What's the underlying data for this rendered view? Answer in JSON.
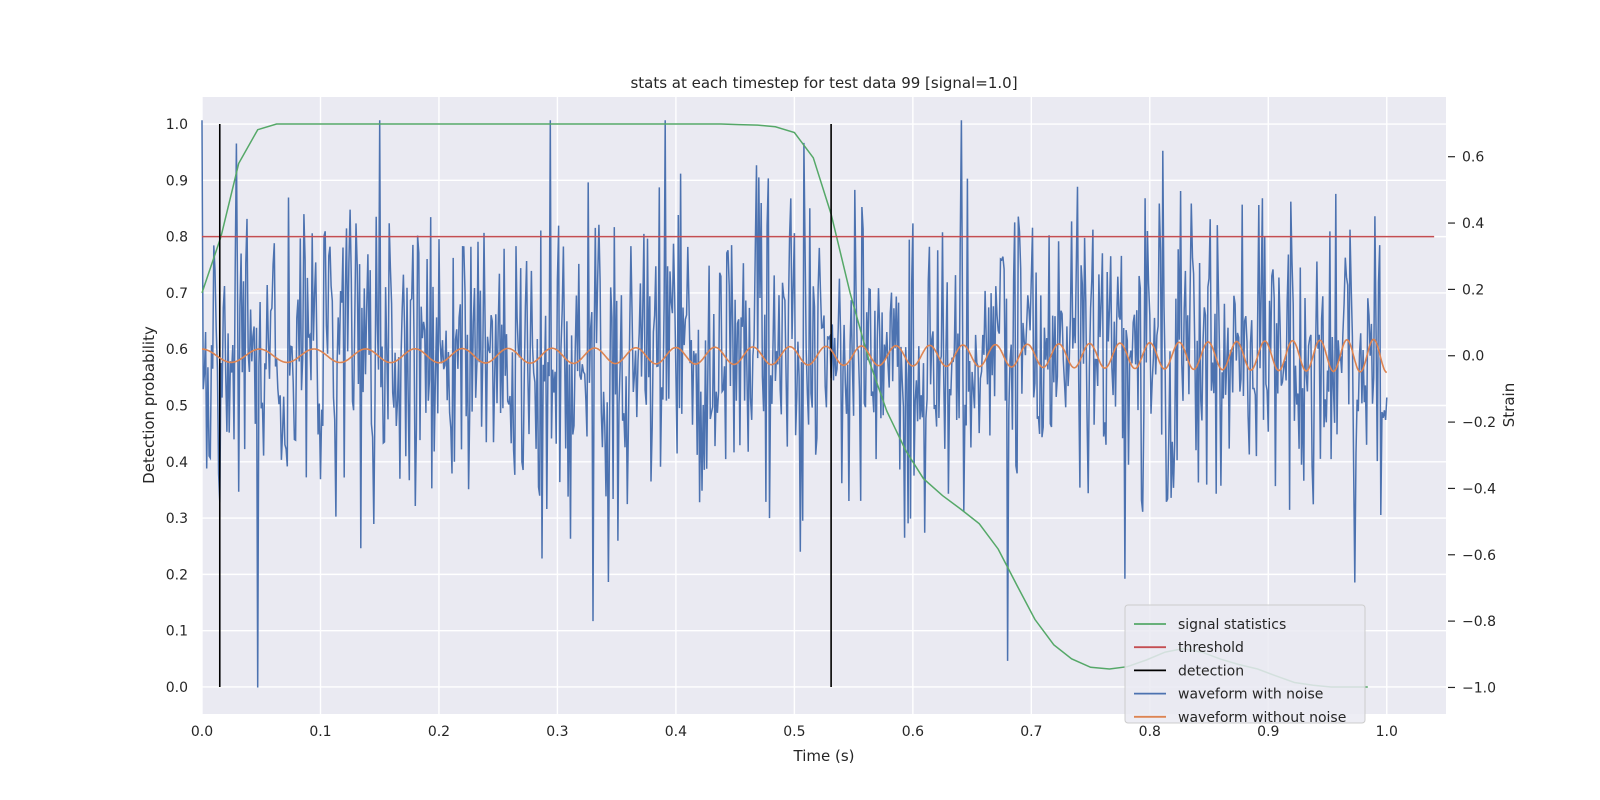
{
  "chart_data": {
    "type": "line",
    "title": "stats at each timestep for test data 99 [signal=1.0]",
    "xlabel": "Time (s)",
    "ylabel_left": "Detection probability",
    "ylabel_right": "Strain",
    "xlim": [
      0.0,
      1.05
    ],
    "ylim_left": [
      -0.048,
      1.048
    ],
    "ylim_right": [
      -1.08,
      0.78
    ],
    "x_ticks": [
      "0.0",
      "0.1",
      "0.2",
      "0.3",
      "0.4",
      "0.5",
      "0.6",
      "0.7",
      "0.8",
      "0.9",
      "1.0"
    ],
    "y_left_ticks": [
      "0.0",
      "0.1",
      "0.2",
      "0.3",
      "0.4",
      "0.5",
      "0.6",
      "0.7",
      "0.8",
      "0.9",
      "1.0"
    ],
    "y_right_ticks": [
      "−1.0",
      "−0.8",
      "−0.6",
      "−0.4",
      "−0.2",
      "0.0",
      "0.2",
      "0.4",
      "0.6"
    ],
    "grid": true,
    "background": "#eaeaf2",
    "legend_position": "lower-right",
    "series": [
      {
        "name": "signal statistics",
        "axis": "left",
        "color": "#55a868",
        "x": [
          0.0,
          0.016,
          0.031,
          0.047,
          0.063,
          0.078,
          0.094,
          0.109,
          0.125,
          0.2,
          0.3,
          0.4,
          0.438,
          0.453,
          0.469,
          0.484,
          0.5,
          0.516,
          0.531,
          0.547,
          0.563,
          0.578,
          0.594,
          0.609,
          0.625,
          0.641,
          0.656,
          0.672,
          0.688,
          0.703,
          0.719,
          0.734,
          0.75,
          0.766,
          0.781,
          0.797,
          0.813,
          0.828,
          0.844,
          0.859,
          0.875,
          0.891,
          0.906,
          0.922,
          0.938,
          0.953,
          0.969,
          0.984
        ],
        "y": [
          0.7,
          0.8,
          0.93,
          0.99,
          1.0,
          1.0,
          1.0,
          1.0,
          1.0,
          1.0,
          1.0,
          1.0,
          1.0,
          0.999,
          0.998,
          0.995,
          0.985,
          0.94,
          0.84,
          0.7,
          0.58,
          0.49,
          0.42,
          0.37,
          0.34,
          0.315,
          0.29,
          0.245,
          0.18,
          0.12,
          0.075,
          0.05,
          0.035,
          0.032,
          0.036,
          0.048,
          0.062,
          0.068,
          0.062,
          0.05,
          0.04,
          0.032,
          0.02,
          0.008,
          0.003,
          0.0,
          0.0,
          0.0
        ]
      },
      {
        "name": "threshold",
        "axis": "left",
        "color": "#c44e52",
        "x": [
          0.0,
          1.04
        ],
        "y": [
          0.8,
          0.8
        ]
      },
      {
        "name": "detection",
        "axis": "left",
        "color": "#000000",
        "x": [
          0.015,
          0.531
        ],
        "y_range": [
          0.0,
          1.0
        ]
      },
      {
        "name": "waveform with noise",
        "axis": "right",
        "color": "#4c72b0",
        "x_range": [
          0.0,
          1.0
        ],
        "samples": 1000,
        "notable_points": [
          {
            "x": 0.047,
            "y": -1.0
          },
          {
            "x": 0.15,
            "y": 0.71
          },
          {
            "x": 0.294,
            "y": 0.71
          },
          {
            "x": 0.391,
            "y": 0.71
          },
          {
            "x": 0.641,
            "y": 0.71
          },
          {
            "x": 0.33,
            "y": -0.8
          },
          {
            "x": 0.68,
            "y": -0.92
          }
        ],
        "approx_std": 0.22
      },
      {
        "name": "waveform without noise",
        "axis": "right",
        "color": "#dd8452",
        "x_range": [
          0.0,
          1.0
        ],
        "amplitude_start": 0.02,
        "amplitude_end": 0.05,
        "cycles_start_per_s": 20,
        "cycles_end_per_s": 45
      }
    ]
  }
}
